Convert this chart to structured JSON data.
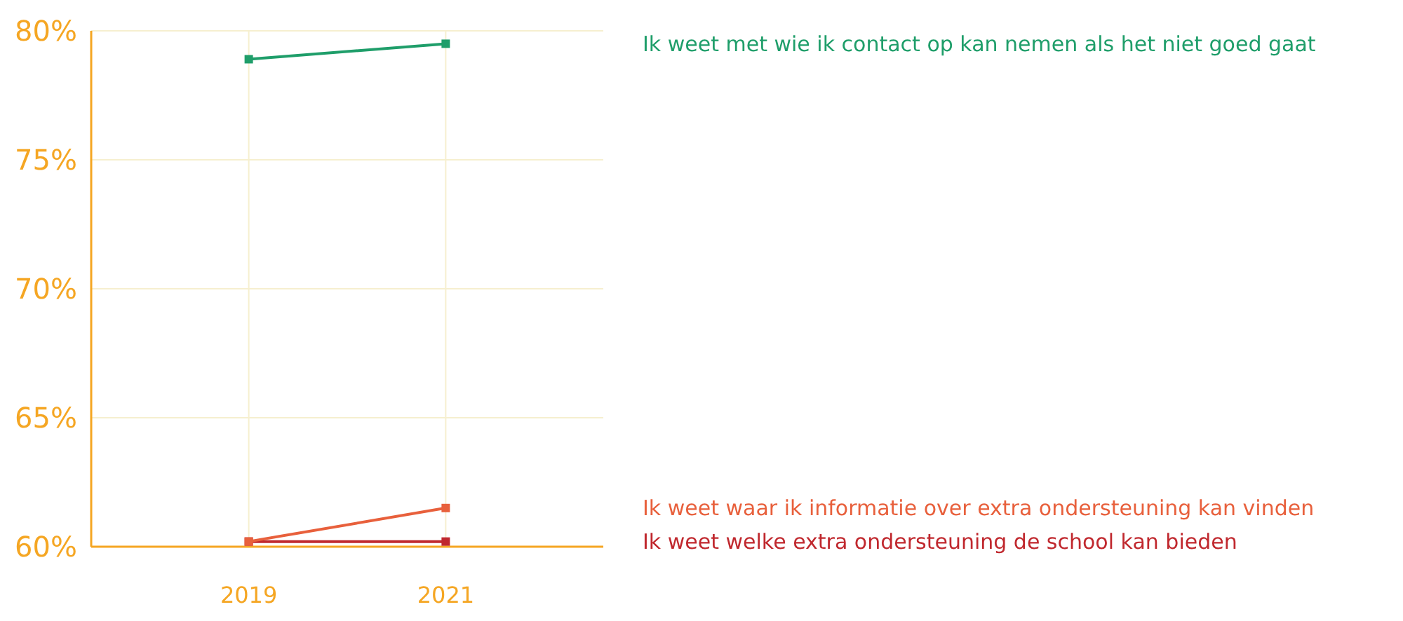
{
  "chart_data": {
    "type": "line",
    "categories": [
      "2019",
      "2021"
    ],
    "series": [
      {
        "name": "Ik weet met wie ik contact op kan nemen als het niet goed gaat",
        "color": "#1f9e6a",
        "values": [
          78.9,
          79.5
        ]
      },
      {
        "name": "Ik weet waar ik informatie over extra ondersteuning kan vinden",
        "color": "#e8603c",
        "values": [
          60.2,
          61.5
        ]
      },
      {
        "name": "Ik weet welke extra ondersteuning de school kan bieden",
        "color": "#c0282e",
        "values": [
          60.2,
          60.2
        ]
      }
    ],
    "ylim": [
      60,
      80
    ],
    "yticks": [
      {
        "value": 60,
        "label": "60%"
      },
      {
        "value": 65,
        "label": "65%"
      },
      {
        "value": 70,
        "label": "70%"
      },
      {
        "value": 75,
        "label": "75%"
      },
      {
        "value": 80,
        "label": "80%"
      }
    ],
    "grid": true,
    "marker": "square",
    "line_style": "solid"
  }
}
